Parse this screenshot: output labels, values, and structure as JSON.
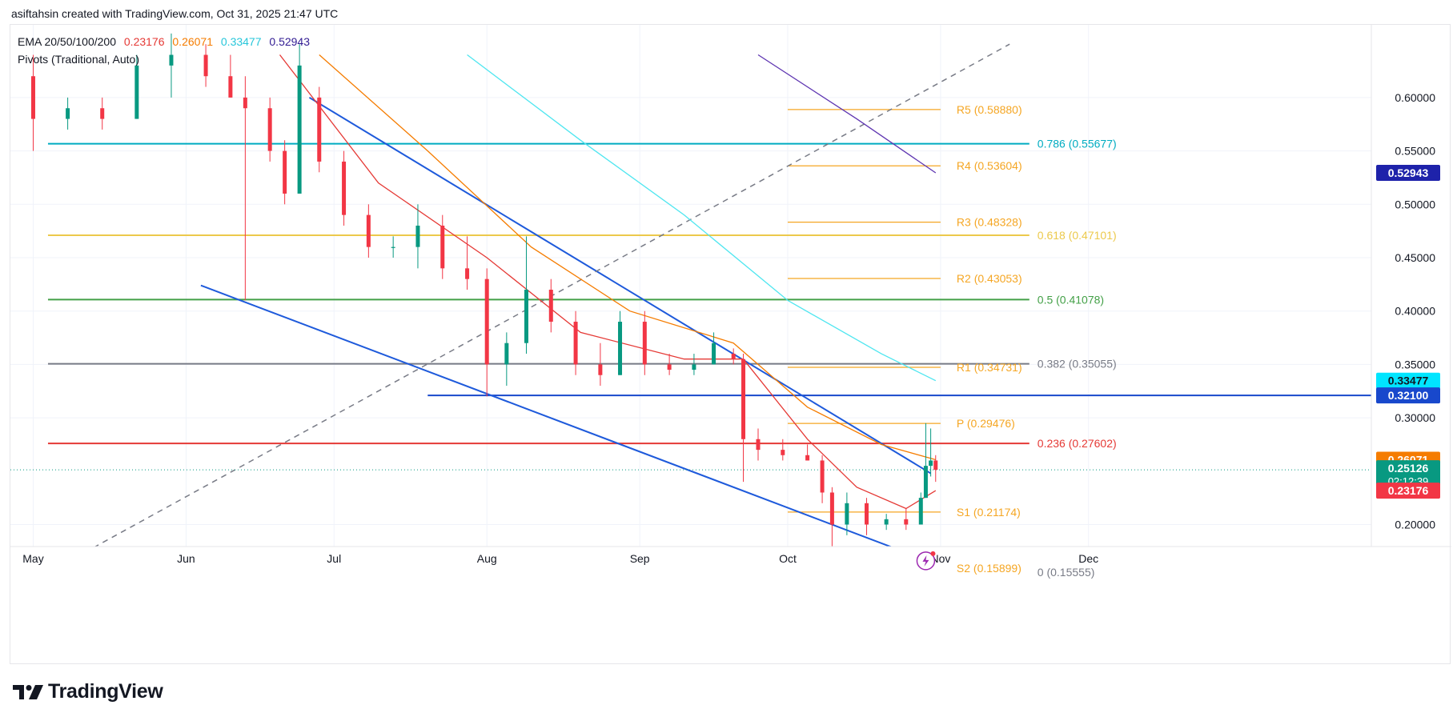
{
  "header": {
    "attribution": "asiftahsin created with TradingView.com, Oct 31, 2025 21:47 UTC"
  },
  "legend": {
    "ema_label": "EMA 20/50/100/200",
    "ema_values": [
      {
        "text": "0.23176",
        "color": "#e53935"
      },
      {
        "text": "0.26071",
        "color": "#f57c00"
      },
      {
        "text": "0.33477",
        "color": "#26c6da"
      },
      {
        "text": "0.52943",
        "color": "#311b92"
      }
    ],
    "pivots_label": "Pivots (Traditional, Auto)"
  },
  "footer": {
    "brand": "TradingView",
    "logo_icon": "tradingview-logo-icon"
  },
  "chart_data": {
    "type": "candlestick",
    "x_labels": [
      "May",
      "Jun",
      "Jul",
      "Aug",
      "Sep",
      "Oct",
      "Nov",
      "Dec"
    ],
    "y_ticks": [
      0.6,
      0.55,
      0.5,
      0.45,
      0.4,
      0.35,
      0.3,
      0.2
    ],
    "y_tick_labels": [
      "0.60000",
      "0.55000",
      "0.50000",
      "0.45000",
      "0.40000",
      "0.35000",
      "0.30000",
      "0.20000"
    ],
    "price_badges": [
      {
        "label": "0.52943",
        "value": 0.52943,
        "bg": "#1e22aa",
        "fg": "#ffffff"
      },
      {
        "label": "0.33477",
        "value": 0.33477,
        "bg": "#00e5ff",
        "fg": "#131722"
      },
      {
        "label": "0.32100",
        "value": 0.321,
        "bg": "#1848cc",
        "fg": "#ffffff"
      },
      {
        "label": "0.26071",
        "value": 0.26071,
        "bg": "#f57c00",
        "fg": "#ffffff"
      },
      {
        "label": "0.25126",
        "value": 0.25126,
        "bg": "#089981",
        "fg": "#ffffff",
        "sub": "02:12:39"
      },
      {
        "label": "0.23176",
        "value": 0.23176,
        "bg": "#f23645",
        "fg": "#ffffff"
      }
    ],
    "fib_levels": [
      {
        "label": "0.786 (0.55677)",
        "value": 0.55677,
        "color": "#00acc1"
      },
      {
        "label": "0.618 (0.47101)",
        "value": 0.47101,
        "color": "#ecc94b"
      },
      {
        "label": "0.5 (0.41078)",
        "value": 0.41078,
        "color": "#43a047"
      },
      {
        "label": "0.382 (0.35055)",
        "value": 0.35055,
        "color": "#787b86"
      },
      {
        "label": "0.236 (0.27602)",
        "value": 0.27602,
        "color": "#e53935"
      },
      {
        "label": "0 (0.15555)",
        "value": 0.15555,
        "color": "#787b86"
      }
    ],
    "pivot_levels": [
      {
        "label": "R5 (0.58880)",
        "value": 0.5888
      },
      {
        "label": "R4 (0.53604)",
        "value": 0.53604
      },
      {
        "label": "R3 (0.48328)",
        "value": 0.48328
      },
      {
        "label": "R2 (0.43053)",
        "value": 0.43053
      },
      {
        "label": "R1 (0.34731)",
        "value": 0.34731
      },
      {
        "label": "P (0.29476)",
        "value": 0.29476
      },
      {
        "label": "S1 (0.21174)",
        "value": 0.21174
      },
      {
        "label": "S2 (0.15899)",
        "value": 0.15899
      }
    ],
    "pivot_color": "#f5a623",
    "horizontal_support": 0.321,
    "candles": [
      {
        "date": "2025-05-01",
        "o": 0.62,
        "h": 0.64,
        "l": 0.55,
        "c": 0.58
      },
      {
        "date": "2025-05-08",
        "o": 0.58,
        "h": 0.6,
        "l": 0.57,
        "c": 0.59
      },
      {
        "date": "2025-05-15",
        "o": 0.59,
        "h": 0.6,
        "l": 0.57,
        "c": 0.58
      },
      {
        "date": "2025-05-22",
        "o": 0.58,
        "h": 0.64,
        "l": 0.58,
        "c": 0.63
      },
      {
        "date": "2025-05-29",
        "o": 0.63,
        "h": 0.66,
        "l": 0.6,
        "c": 0.64
      },
      {
        "date": "2025-06-05",
        "o": 0.64,
        "h": 0.65,
        "l": 0.61,
        "c": 0.62
      },
      {
        "date": "2025-06-10",
        "o": 0.62,
        "h": 0.64,
        "l": 0.6,
        "c": 0.6
      },
      {
        "date": "2025-06-13",
        "o": 0.6,
        "h": 0.62,
        "l": 0.41,
        "c": 0.59
      },
      {
        "date": "2025-06-18",
        "o": 0.59,
        "h": 0.6,
        "l": 0.54,
        "c": 0.55
      },
      {
        "date": "2025-06-21",
        "o": 0.55,
        "h": 0.56,
        "l": 0.5,
        "c": 0.51
      },
      {
        "date": "2025-06-24",
        "o": 0.51,
        "h": 0.65,
        "l": 0.51,
        "c": 0.63
      },
      {
        "date": "2025-06-28",
        "o": 0.6,
        "h": 0.61,
        "l": 0.53,
        "c": 0.54
      },
      {
        "date": "2025-07-03",
        "o": 0.54,
        "h": 0.55,
        "l": 0.48,
        "c": 0.49
      },
      {
        "date": "2025-07-08",
        "o": 0.49,
        "h": 0.5,
        "l": 0.45,
        "c": 0.46
      },
      {
        "date": "2025-07-13",
        "o": 0.46,
        "h": 0.47,
        "l": 0.45,
        "c": 0.46
      },
      {
        "date": "2025-07-18",
        "o": 0.46,
        "h": 0.5,
        "l": 0.44,
        "c": 0.48
      },
      {
        "date": "2025-07-23",
        "o": 0.48,
        "h": 0.49,
        "l": 0.43,
        "c": 0.44
      },
      {
        "date": "2025-07-28",
        "o": 0.44,
        "h": 0.47,
        "l": 0.42,
        "c": 0.43
      },
      {
        "date": "2025-08-01",
        "o": 0.43,
        "h": 0.44,
        "l": 0.32,
        "c": 0.35
      },
      {
        "date": "2025-08-05",
        "o": 0.35,
        "h": 0.38,
        "l": 0.33,
        "c": 0.37
      },
      {
        "date": "2025-08-09",
        "o": 0.37,
        "h": 0.47,
        "l": 0.36,
        "c": 0.42
      },
      {
        "date": "2025-08-14",
        "o": 0.42,
        "h": 0.43,
        "l": 0.38,
        "c": 0.39
      },
      {
        "date": "2025-08-19",
        "o": 0.39,
        "h": 0.4,
        "l": 0.34,
        "c": 0.35
      },
      {
        "date": "2025-08-24",
        "o": 0.35,
        "h": 0.37,
        "l": 0.33,
        "c": 0.34
      },
      {
        "date": "2025-08-28",
        "o": 0.34,
        "h": 0.4,
        "l": 0.34,
        "c": 0.39
      },
      {
        "date": "2025-09-02",
        "o": 0.39,
        "h": 0.4,
        "l": 0.34,
        "c": 0.35
      },
      {
        "date": "2025-09-07",
        "o": 0.35,
        "h": 0.36,
        "l": 0.34,
        "c": 0.345
      },
      {
        "date": "2025-09-12",
        "o": 0.345,
        "h": 0.36,
        "l": 0.34,
        "c": 0.35
      },
      {
        "date": "2025-09-16",
        "o": 0.35,
        "h": 0.38,
        "l": 0.35,
        "c": 0.37
      },
      {
        "date": "2025-09-20",
        "o": 0.36,
        "h": 0.365,
        "l": 0.35,
        "c": 0.355
      },
      {
        "date": "2025-09-22",
        "o": 0.355,
        "h": 0.36,
        "l": 0.24,
        "c": 0.28
      },
      {
        "date": "2025-09-25",
        "o": 0.28,
        "h": 0.29,
        "l": 0.26,
        "c": 0.27
      },
      {
        "date": "2025-09-30",
        "o": 0.27,
        "h": 0.28,
        "l": 0.26,
        "c": 0.265
      },
      {
        "date": "2025-10-05",
        "o": 0.265,
        "h": 0.275,
        "l": 0.26,
        "c": 0.26
      },
      {
        "date": "2025-10-08",
        "o": 0.26,
        "h": 0.265,
        "l": 0.22,
        "c": 0.23
      },
      {
        "date": "2025-10-10",
        "o": 0.23,
        "h": 0.235,
        "l": 0.155,
        "c": 0.2
      },
      {
        "date": "2025-10-13",
        "o": 0.2,
        "h": 0.23,
        "l": 0.19,
        "c": 0.22
      },
      {
        "date": "2025-10-17",
        "o": 0.22,
        "h": 0.225,
        "l": 0.19,
        "c": 0.2
      },
      {
        "date": "2025-10-21",
        "o": 0.2,
        "h": 0.21,
        "l": 0.195,
        "c": 0.205
      },
      {
        "date": "2025-10-25",
        "o": 0.205,
        "h": 0.215,
        "l": 0.195,
        "c": 0.2
      },
      {
        "date": "2025-10-28",
        "o": 0.2,
        "h": 0.23,
        "l": 0.2,
        "c": 0.225
      },
      {
        "date": "2025-10-29",
        "o": 0.225,
        "h": 0.295,
        "l": 0.225,
        "c": 0.255
      },
      {
        "date": "2025-10-30",
        "o": 0.255,
        "h": 0.29,
        "l": 0.245,
        "c": 0.26
      },
      {
        "date": "2025-10-31",
        "o": 0.26,
        "h": 0.265,
        "l": 0.24,
        "c": 0.25126
      }
    ],
    "ema_series": [
      {
        "name": "EMA 20",
        "color": "#e53935",
        "points": [
          [
            "2025-06-20",
            0.64
          ],
          [
            "2025-07-10",
            0.52
          ],
          [
            "2025-08-01",
            0.45
          ],
          [
            "2025-08-20",
            0.38
          ],
          [
            "2025-09-10",
            0.355
          ],
          [
            "2025-09-22",
            0.355
          ],
          [
            "2025-10-05",
            0.28
          ],
          [
            "2025-10-15",
            0.235
          ],
          [
            "2025-10-25",
            0.215
          ],
          [
            "2025-10-31",
            0.23176
          ]
        ]
      },
      {
        "name": "EMA 50",
        "color": "#f57c00",
        "points": [
          [
            "2025-06-28",
            0.64
          ],
          [
            "2025-07-20",
            0.55
          ],
          [
            "2025-08-10",
            0.46
          ],
          [
            "2025-08-30",
            0.4
          ],
          [
            "2025-09-20",
            0.37
          ],
          [
            "2025-10-05",
            0.31
          ],
          [
            "2025-10-20",
            0.275
          ],
          [
            "2025-10-31",
            0.26071
          ]
        ]
      },
      {
        "name": "EMA 100",
        "color": "#4ee6f0",
        "points": [
          [
            "2025-07-28",
            0.64
          ],
          [
            "2025-08-20",
            0.56
          ],
          [
            "2025-09-10",
            0.49
          ],
          [
            "2025-10-01",
            0.41
          ],
          [
            "2025-10-20",
            0.36
          ],
          [
            "2025-10-31",
            0.33477
          ]
        ]
      },
      {
        "name": "EMA 200",
        "color": "#5e35b1",
        "points": [
          [
            "2025-09-25",
            0.64
          ],
          [
            "2025-10-15",
            0.58
          ],
          [
            "2025-10-31",
            0.52943
          ]
        ]
      }
    ],
    "trendlines": [
      {
        "color": "#1e5adb",
        "dash": false,
        "from": [
          "2025-06-26",
          0.6
        ],
        "to": [
          "2025-10-30",
          0.248
        ]
      },
      {
        "color": "#1e5adb",
        "dash": false,
        "from": [
          "2025-06-04",
          0.424
        ],
        "to": [
          "2025-10-30",
          0.165
        ]
      },
      {
        "color": "#787b86",
        "dash": true,
        "from": [
          "2025-05-04",
          0.155
        ],
        "to": [
          "2025-11-15",
          0.65
        ]
      }
    ]
  }
}
